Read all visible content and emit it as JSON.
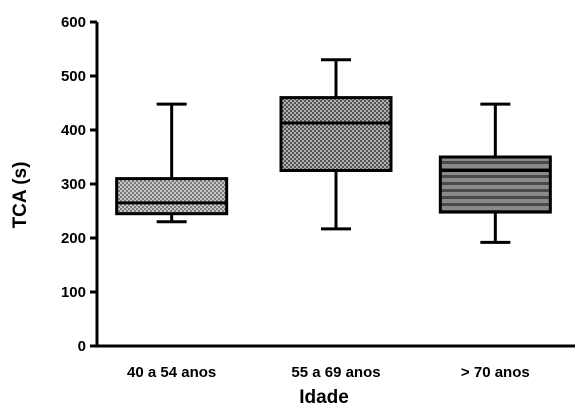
{
  "chart_data": {
    "type": "box",
    "title": "",
    "xlabel": "Idade",
    "ylabel": "TCA (s)",
    "ylim": [
      0,
      600
    ],
    "yticks": [
      0,
      100,
      200,
      300,
      400,
      500,
      600
    ],
    "categories": [
      "40 a 54 anos",
      "55 a 69 anos",
      "> 70 anos"
    ],
    "boxes": [
      {
        "category": "40 a 54 anos",
        "min": 230,
        "q1": 245,
        "median": 265,
        "q3": 310,
        "max": 448,
        "fill": "dotted-gray"
      },
      {
        "category": "55 a 69 anos",
        "min": 217,
        "q1": 325,
        "median": 413,
        "q3": 460,
        "max": 530,
        "fill": "crosshatch-gray"
      },
      {
        "category": "> 70 anos",
        "min": 192,
        "q1": 248,
        "median": 325,
        "q3": 350,
        "max": 448,
        "fill": "horizontal-stripes"
      }
    ],
    "grid": false,
    "legend": "none"
  },
  "colors": {
    "axis": "#000000",
    "fill_light": "#b8b8b8",
    "fill_mid": "#9a9a9a",
    "fill_dark": "#6e6e6e"
  }
}
